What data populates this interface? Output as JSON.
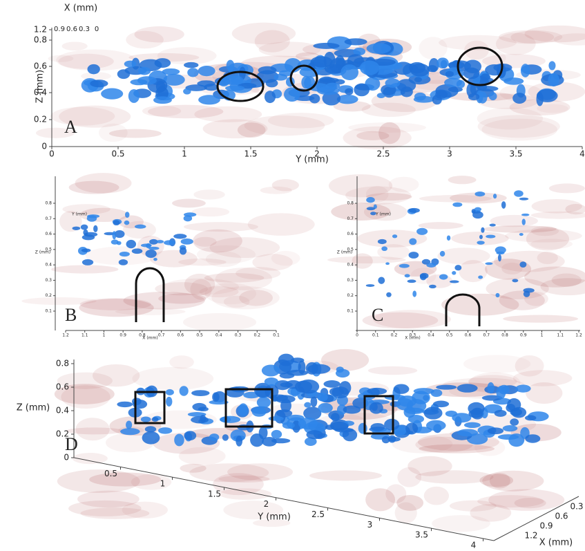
{
  "panels": [
    {
      "label": "A",
      "top_axis_title": "X (mm)",
      "top_ticks": [
        "0.9",
        "0.6",
        "0.3",
        "0"
      ],
      "x_axis_title": "Y (mm)",
      "x_ticks": [
        "0",
        "0.5",
        "1",
        "1.5",
        "2",
        "2.5",
        "3",
        "3.5",
        "4"
      ],
      "y_axis_title": "Z (mm)",
      "y_ticks": [
        "0",
        "0.2",
        "0.4",
        "0.6",
        "0.8",
        "1.2"
      ]
    },
    {
      "label": "B",
      "x_axis_title": "X (mm)",
      "x_ticks": [
        "1.2",
        "1.1",
        "1",
        "0.9",
        "0.8",
        "0.7",
        "0.6",
        "0.5",
        "0.4",
        "0.3",
        "0.2",
        "0.1"
      ],
      "y_axis_title": "Z (mm)",
      "y_ticks": [
        "0.8",
        "0.7",
        "0.6",
        "0.5",
        "0.4",
        "0.3",
        "0.2",
        "0.1"
      ],
      "depth_axis_title": "Y (mm)"
    },
    {
      "label": "C",
      "x_axis_title": "X (mm)",
      "x_ticks": [
        "0",
        "0.1",
        "0.2",
        "0.3",
        "0.4",
        "0.5",
        "0.6",
        "0.7",
        "0.8",
        "0.9",
        "1",
        "1.1",
        "1.2"
      ],
      "y_axis_title": "Z (mm)",
      "y_ticks": [
        "0.8",
        "0.7",
        "0.6",
        "0.5",
        "0.4",
        "0.3",
        "0.2",
        "0.1"
      ],
      "depth_axis_title": "Y (mm)"
    },
    {
      "label": "D",
      "y_axis_title": "Z (mm)",
      "y_ticks": [
        "0",
        "0.2",
        "0.4",
        "0.6",
        "0.8"
      ],
      "x_axis_title": "Y (mm)",
      "x_ticks": [
        "0.5",
        "1",
        "1.5",
        "2",
        "2.5",
        "3",
        "3.5",
        "4"
      ],
      "depth_axis_title": "X (mm)",
      "depth_ticks": [
        "0.3",
        "0.6",
        "0.9",
        "1.2"
      ]
    }
  ]
}
